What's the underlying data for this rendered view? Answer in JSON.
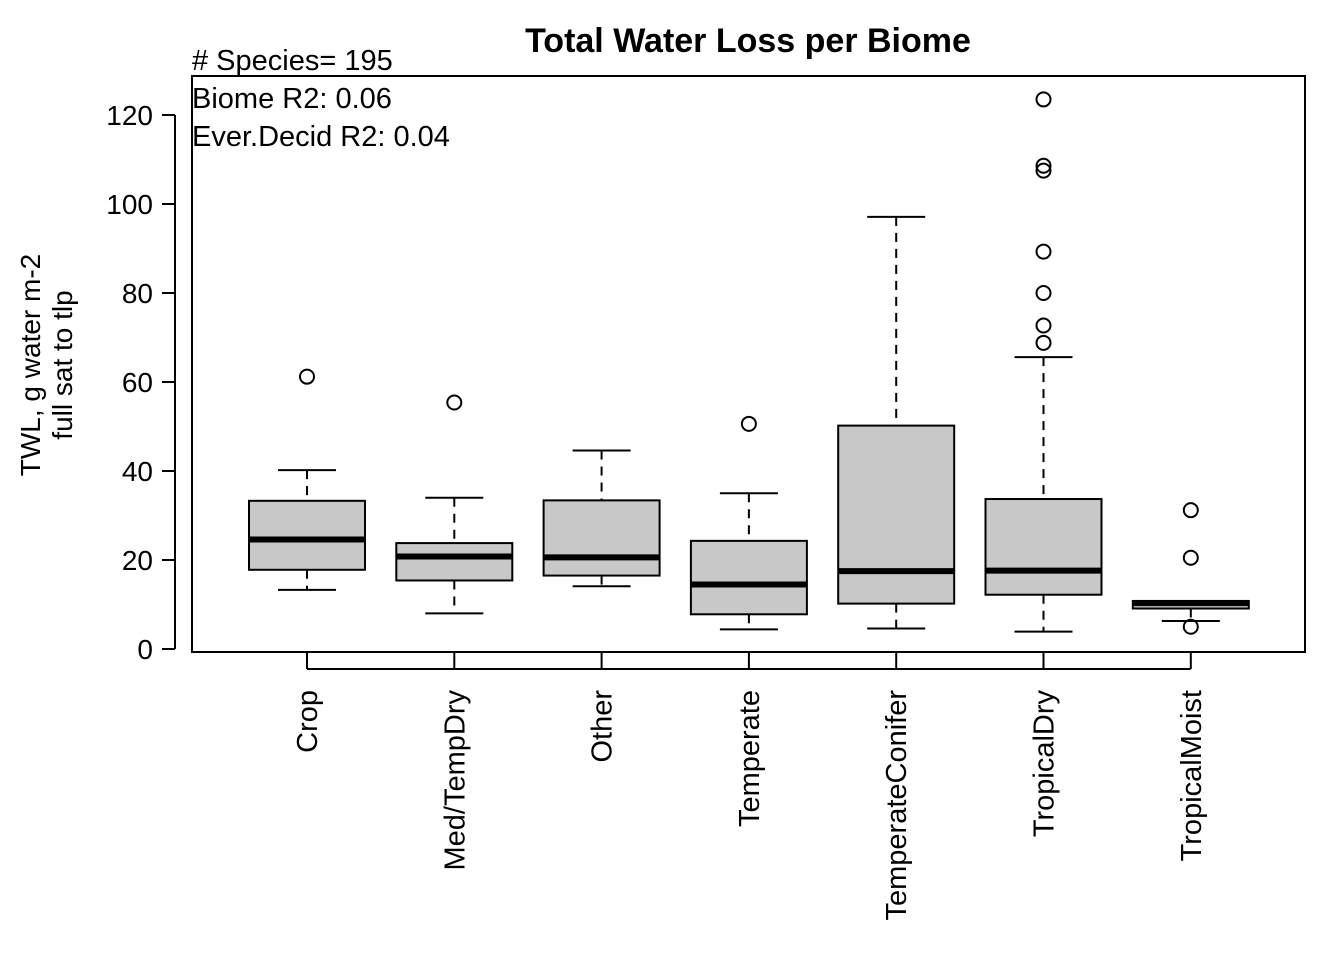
{
  "chart_data": {
    "type": "box",
    "title": "Total Water Loss per Biome",
    "annotations": [
      "# Species= 195",
      "Biome R2: 0.06",
      "Ever.Decid R2: 0.04"
    ],
    "ylabel": [
      "TWL, g water m-2",
      "full sat to tlp"
    ],
    "xlabel": "",
    "ylim": [
      0,
      130
    ],
    "yticks": [
      0,
      20,
      40,
      60,
      80,
      100,
      120
    ],
    "ytick_labels": [
      "0",
      "20",
      "40",
      "60",
      "80",
      "100",
      "120"
    ],
    "box_fill": "#c8c8c8",
    "categories": [
      "Crop",
      "Med/TempDry",
      "Other",
      "Temperate",
      "TemperateConifer",
      "TropicalDry",
      "TropicalMoist"
    ],
    "boxes": [
      {
        "whisker_low": 13.3,
        "q1": 17.8,
        "median": 24.6,
        "q3": 33.3,
        "whisker_high": 40.2,
        "outliers": [
          61.2
        ]
      },
      {
        "whisker_low": 8.0,
        "q1": 15.4,
        "median": 20.8,
        "q3": 23.8,
        "whisker_high": 34.0,
        "outliers": [
          55.4
        ]
      },
      {
        "whisker_low": 14.1,
        "q1": 16.5,
        "median": 20.6,
        "q3": 33.4,
        "whisker_high": 44.6,
        "outliers": []
      },
      {
        "whisker_low": 4.4,
        "q1": 7.8,
        "median": 14.5,
        "q3": 24.3,
        "whisker_high": 35.0,
        "outliers": [
          50.6
        ]
      },
      {
        "whisker_low": 4.6,
        "q1": 10.2,
        "median": 17.5,
        "q3": 50.2,
        "whisker_high": 97.1,
        "outliers": []
      },
      {
        "whisker_low": 3.9,
        "q1": 12.2,
        "median": 17.6,
        "q3": 33.7,
        "whisker_high": 65.6,
        "outliers": [
          68.8,
          72.7,
          80.0,
          89.3,
          107.5,
          108.6,
          123.5
        ]
      },
      {
        "whisker_low": 6.3,
        "q1": 9.1,
        "median": 10.3,
        "q3": 10.8,
        "whisker_high": 10.8,
        "outliers": [
          5.0,
          20.5,
          31.2
        ]
      }
    ]
  }
}
